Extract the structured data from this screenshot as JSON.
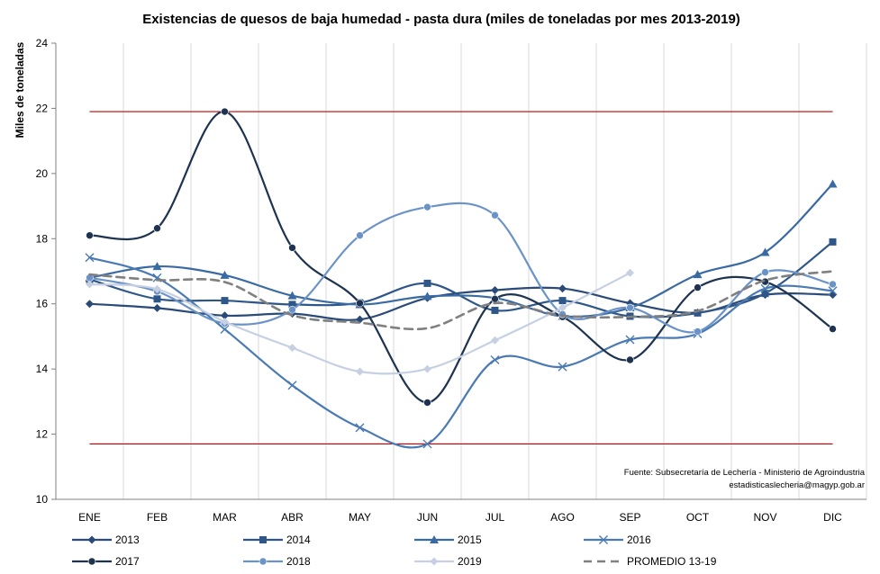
{
  "chart_data": {
    "type": "line",
    "title": "Existencias de quesos de baja humedad - pasta dura (miles de toneladas por mes 2013-2019)",
    "ylabel": "Miles de toneladas",
    "xlabel": "",
    "ylim": [
      10,
      24
    ],
    "yticks": [
      10,
      12,
      14,
      16,
      18,
      20,
      22,
      24
    ],
    "categories": [
      "ENE",
      "FEB",
      "MAR",
      "ABR",
      "MAY",
      "JUN",
      "JUL",
      "AGO",
      "SEP",
      "OCT",
      "NOV",
      "DIC"
    ],
    "grid": "vertical",
    "reference_lines": [
      21.9,
      11.7
    ],
    "reference_color": "#c00000",
    "legend_position": "bottom",
    "source_lines": [
      "Fuente: Subsecretaría de Lechería - Ministerio de Agroindustria",
      "estadisticaslecheria@magyp.gob.ar"
    ],
    "series": [
      {
        "name": "2013",
        "values": [
          16.0,
          15.87,
          15.64,
          15.7,
          15.52,
          16.18,
          16.42,
          16.47,
          16.02,
          15.73,
          16.28,
          16.28
        ],
        "color": "#2a4a77",
        "marker": "diamond",
        "dash": false
      },
      {
        "name": "2014",
        "values": [
          16.75,
          16.15,
          16.1,
          15.98,
          16.03,
          16.63,
          15.8,
          16.1,
          15.62,
          15.72,
          16.32,
          17.9
        ],
        "color": "#2e5688",
        "marker": "square",
        "dash": false
      },
      {
        "name": "2015",
        "values": [
          16.8,
          17.15,
          16.88,
          16.25,
          15.98,
          16.23,
          16.18,
          15.62,
          15.88,
          16.9,
          17.58,
          19.68
        ],
        "color": "#3a6aa2",
        "marker": "triangle",
        "dash": false
      },
      {
        "name": "2016",
        "values": [
          17.42,
          16.8,
          15.22,
          13.5,
          12.2,
          11.7,
          14.28,
          14.07,
          14.9,
          15.08,
          16.47,
          16.4
        ],
        "color": "#4a7ab4",
        "marker": "x",
        "dash": false
      },
      {
        "name": "2017",
        "values": [
          18.1,
          18.32,
          21.9,
          17.72,
          16.02,
          12.97,
          16.15,
          15.6,
          14.28,
          16.5,
          16.68,
          15.23
        ],
        "color": "#1e3350",
        "marker": "circle",
        "dash": false
      },
      {
        "name": "2018",
        "values": [
          16.8,
          16.38,
          15.4,
          15.82,
          18.1,
          18.97,
          18.72,
          15.68,
          15.88,
          15.15,
          16.97,
          16.6
        ],
        "color": "#6b93c8",
        "marker": "circle",
        "dash": false
      },
      {
        "name": "2019",
        "values": [
          16.6,
          16.45,
          15.45,
          14.65,
          13.92,
          14.0,
          14.88,
          15.88,
          16.95,
          null,
          null,
          null
        ],
        "color": "#c6d0e2",
        "marker": "diamond",
        "dash": false
      },
      {
        "name": "PROMEDIO 13-19",
        "values": [
          16.9,
          16.73,
          16.67,
          15.65,
          15.42,
          15.25,
          16.02,
          15.64,
          15.6,
          15.78,
          16.72,
          17.0
        ],
        "color": "#808080",
        "marker": "none",
        "dash": true
      }
    ]
  }
}
